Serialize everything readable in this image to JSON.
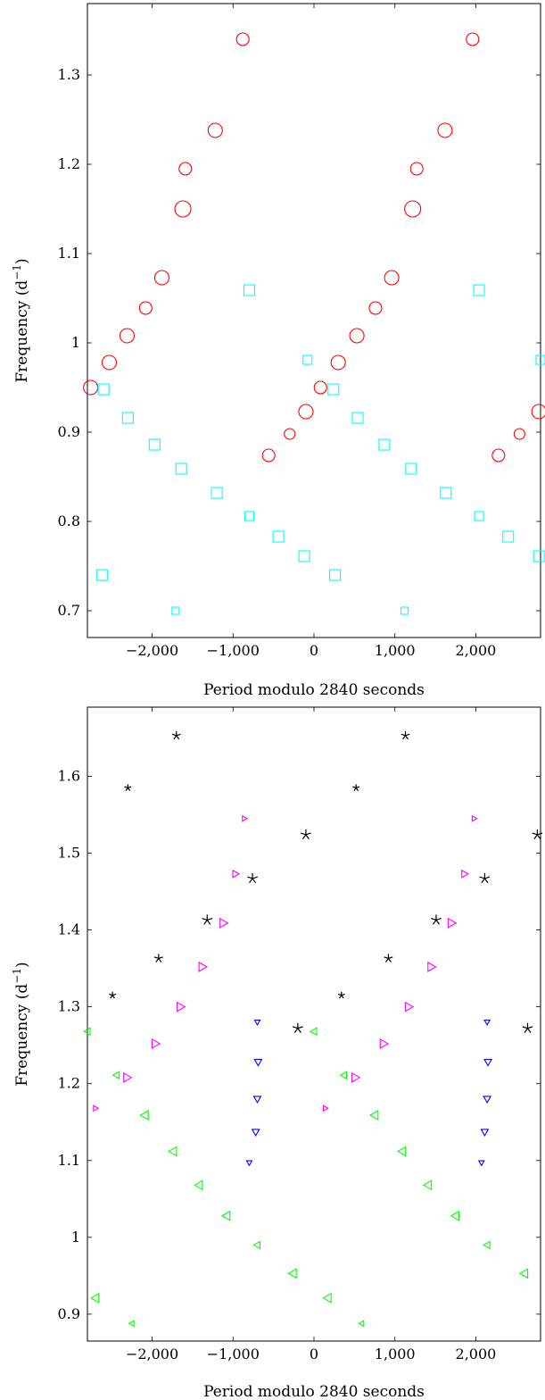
{
  "chart_data": [
    {
      "type": "scatter",
      "title": "",
      "xlabel": "Period modulo 2840 seconds",
      "ylabel": "Frequency (d",
      "ylabel_sup": "−1",
      "ylabel_close": ")",
      "xlim": [
        -2800,
        2800
      ],
      "ylim": [
        0.67,
        1.38
      ],
      "xticks": [
        -2000,
        -1000,
        0,
        1000,
        2000
      ],
      "xtick_labels": [
        "−2,000",
        "−1,000",
        "0",
        "1,000",
        "2,000"
      ],
      "yticks": [
        0.7,
        0.8,
        0.9,
        1.0,
        1.1,
        1.2,
        1.3
      ],
      "ytick_labels": [
        "0.7",
        "0.8",
        "0.9",
        "1",
        "1.1",
        "1.2",
        "1.3"
      ],
      "grid": false,
      "series": [
        {
          "marker": "circle",
          "color": "#ff0000",
          "points": [
            [
              -2760,
              0.95
            ],
            [
              -2530,
              0.978
            ],
            [
              -2310,
              1.008
            ],
            [
              -2080,
              1.039
            ],
            [
              -1880,
              1.073
            ],
            [
              -1620,
              1.15
            ],
            [
              -1590,
              1.195
            ],
            [
              -1220,
              1.238
            ],
            [
              -880,
              1.34
            ],
            [
              -560,
              0.874
            ],
            [
              -300,
              0.898
            ],
            [
              -100,
              0.923
            ],
            [
              80,
              0.95
            ],
            [
              300,
              0.978
            ],
            [
              530,
              1.008
            ],
            [
              760,
              1.039
            ],
            [
              960,
              1.073
            ],
            [
              1220,
              1.15
            ],
            [
              1270,
              1.195
            ],
            [
              1620,
              1.238
            ],
            [
              1960,
              1.34
            ],
            [
              2280,
              0.874
            ],
            [
              2540,
              0.898
            ],
            [
              2780,
              0.923
            ]
          ],
          "sizes": [
            8,
            8,
            8,
            7,
            8,
            9,
            7,
            8,
            7,
            7,
            6,
            8,
            7,
            8,
            8,
            7,
            8,
            9,
            7,
            8,
            7,
            7,
            6,
            8
          ]
        },
        {
          "marker": "square",
          "color": "#00ffff",
          "points": [
            [
              -2620,
              0.74
            ],
            [
              -2600,
              0.948
            ],
            [
              -2300,
              0.916
            ],
            [
              -1970,
              0.886
            ],
            [
              -1640,
              0.859
            ],
            [
              -1710,
              0.7
            ],
            [
              -1200,
              0.832
            ],
            [
              -800,
              0.806
            ],
            [
              -800,
              1.059
            ],
            [
              -440,
              0.783
            ],
            [
              -120,
              0.761
            ],
            [
              -80,
              0.981
            ],
            [
              240,
              0.948
            ],
            [
              260,
              0.74
            ],
            [
              540,
              0.916
            ],
            [
              870,
              0.886
            ],
            [
              1200,
              0.859
            ],
            [
              1120,
              0.7
            ],
            [
              1630,
              0.832
            ],
            [
              2040,
              0.806
            ],
            [
              2040,
              1.059
            ],
            [
              2400,
              0.783
            ],
            [
              2780,
              0.761
            ],
            [
              2800,
              0.981
            ]
          ],
          "sizes": [
            6,
            6,
            6,
            6,
            6,
            4,
            6,
            5,
            6,
            6,
            6,
            5,
            6,
            6,
            6,
            6,
            6,
            4,
            6,
            5,
            6,
            6,
            6,
            5
          ]
        }
      ]
    },
    {
      "type": "scatter",
      "title": "",
      "xlabel": "Period modulo 2840 seconds",
      "ylabel": "Frequency (d",
      "ylabel_sup": "−1",
      "ylabel_close": ")",
      "xlim": [
        -2800,
        2800
      ],
      "ylim": [
        0.865,
        1.69
      ],
      "xticks": [
        -2000,
        -1000,
        0,
        1000,
        2000
      ],
      "xtick_labels": [
        "−2,000",
        "−1,000",
        "0",
        "1,000",
        "2,000"
      ],
      "yticks": [
        0.9,
        1.0,
        1.1,
        1.2,
        1.3,
        1.4,
        1.5,
        1.6
      ],
      "ytick_labels": [
        "0.9",
        "1",
        "1.1",
        "1.2",
        "1.3",
        "1.4",
        "1.5",
        "1.6"
      ],
      "grid": false,
      "series": [
        {
          "marker": "star",
          "color": "#000000",
          "points": [
            [
              -2490,
              1.315
            ],
            [
              -2300,
              1.585
            ],
            [
              -1920,
              1.363
            ],
            [
              -1700,
              1.653
            ],
            [
              -1320,
              1.413
            ],
            [
              -760,
              1.467
            ],
            [
              -200,
              1.272
            ],
            [
              -100,
              1.524
            ],
            [
              340,
              1.315
            ],
            [
              520,
              1.585
            ],
            [
              920,
              1.363
            ],
            [
              1130,
              1.653
            ],
            [
              1510,
              1.413
            ],
            [
              2110,
              1.467
            ],
            [
              2640,
              1.272
            ],
            [
              2760,
              1.524
            ]
          ],
          "sizes": [
            4,
            4,
            5,
            5,
            6,
            6,
            6,
            6,
            4,
            4,
            5,
            5,
            6,
            6,
            6,
            6
          ]
        },
        {
          "marker": "triangle-right",
          "color": "#ff00ff",
          "points": [
            [
              -2700,
              1.168
            ],
            [
              -2310,
              1.208
            ],
            [
              -1960,
              1.252
            ],
            [
              -1650,
              1.3
            ],
            [
              -1380,
              1.352
            ],
            [
              -1120,
              1.409
            ],
            [
              -970,
              1.473
            ],
            [
              -860,
              1.545
            ],
            [
              140,
              1.168
            ],
            [
              510,
              1.208
            ],
            [
              860,
              1.252
            ],
            [
              1170,
              1.3
            ],
            [
              1450,
              1.352
            ],
            [
              1700,
              1.409
            ],
            [
              1860,
              1.473
            ],
            [
              1980,
              1.545
            ]
          ],
          "sizes": [
            3,
            5,
            5,
            5,
            5,
            5,
            4,
            3,
            3,
            5,
            5,
            5,
            5,
            5,
            4,
            3
          ]
        },
        {
          "marker": "triangle-down",
          "color": "#0000ff",
          "points": [
            [
              -800,
              1.097
            ],
            [
              -720,
              1.137
            ],
            [
              -700,
              1.18
            ],
            [
              -690,
              1.228
            ],
            [
              -700,
              1.28
            ],
            [
              2070,
              1.097
            ],
            [
              2110,
              1.137
            ],
            [
              2140,
              1.18
            ],
            [
              2150,
              1.228
            ],
            [
              2140,
              1.28
            ]
          ],
          "sizes": [
            3,
            4,
            4,
            4,
            3,
            3,
            4,
            4,
            4,
            3
          ]
        },
        {
          "marker": "triangle-left",
          "color": "#00ff00",
          "points": [
            [
              -2800,
              1.268
            ],
            [
              -2440,
              1.211
            ],
            [
              -2090,
              1.159
            ],
            [
              -1740,
              1.112
            ],
            [
              -1420,
              1.068
            ],
            [
              -1080,
              1.028
            ],
            [
              -700,
              0.99
            ],
            [
              -260,
              0.953
            ],
            [
              0,
              1.268
            ],
            [
              370,
              1.211
            ],
            [
              750,
              1.159
            ],
            [
              1090,
              1.112
            ],
            [
              1410,
              1.068
            ],
            [
              1750,
              1.028
            ],
            [
              2140,
              0.99
            ],
            [
              2600,
              0.953
            ],
            [
              -2700,
              0.921
            ],
            [
              -2250,
              0.888
            ],
            [
              170,
              0.921
            ],
            [
              590,
              0.888
            ]
          ],
          "sizes": [
            4,
            4,
            5,
            5,
            5,
            5,
            4,
            5,
            4,
            4,
            5,
            5,
            5,
            5,
            4,
            5,
            5,
            3,
            5,
            3
          ]
        }
      ]
    }
  ]
}
